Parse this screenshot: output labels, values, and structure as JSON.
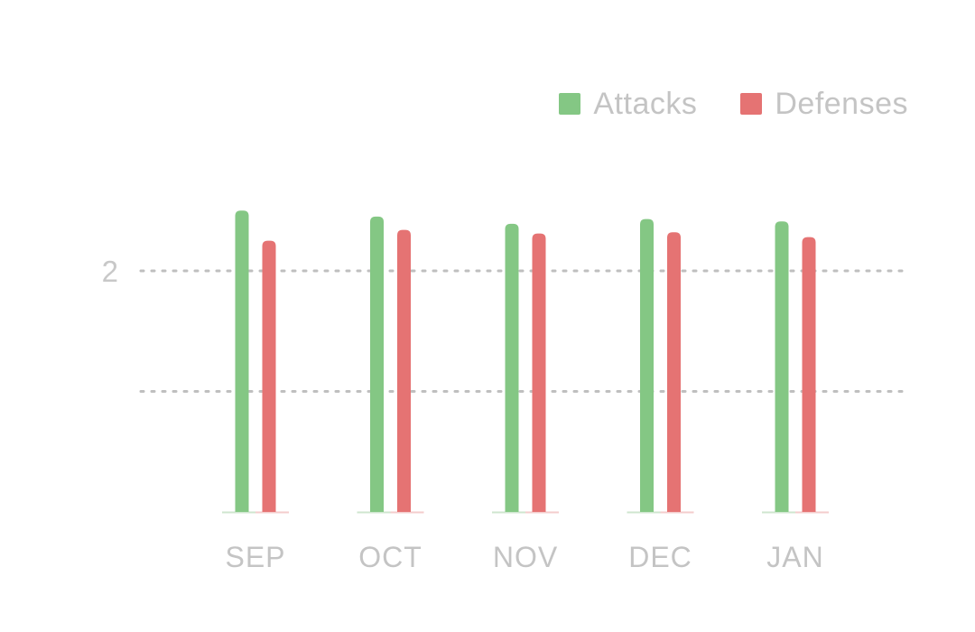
{
  "chart_data": {
    "type": "bar",
    "categories": [
      "SEP",
      "OCT",
      "NOV",
      "DEC",
      "JAN"
    ],
    "series": [
      {
        "name": "Attacks",
        "values": [
          2.5,
          2.45,
          2.39,
          2.43,
          2.41
        ],
        "color": "#84c784"
      },
      {
        "name": "Defenses",
        "values": [
          2.25,
          2.34,
          2.31,
          2.32,
          2.28
        ],
        "color": "#e57373"
      }
    ],
    "ylim": [
      0,
      2.5
    ],
    "y_ticks": [
      {
        "value": 2,
        "label": "2"
      },
      {
        "value": 1,
        "label": ""
      }
    ],
    "grid": true,
    "legend_position": "top-right",
    "title": "",
    "xlabel": "",
    "ylabel": ""
  },
  "colors": {
    "attacks": "#84c784",
    "defenses": "#e57373",
    "text": "#c4c4c4"
  }
}
